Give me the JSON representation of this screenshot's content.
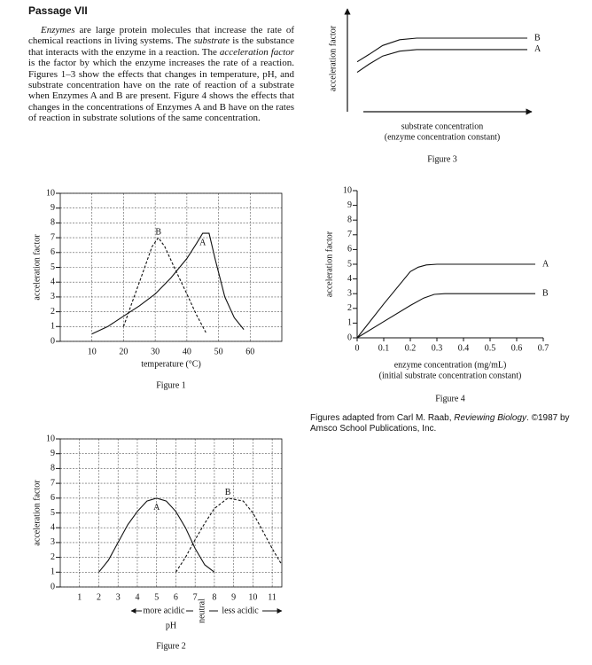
{
  "passage": {
    "title": "Passage VII",
    "runs": [
      {
        "text": "Enzymes",
        "style": "italic"
      },
      {
        "text": " are large protein molecules that increase the rate of chemical reactions in living systems. The ",
        "style": "normal"
      },
      {
        "text": "substrate",
        "style": "italic"
      },
      {
        "text": " is the substance that interacts with the enzyme in a reaction. The ",
        "style": "normal"
      },
      {
        "text": "acceleration factor",
        "style": "italic"
      },
      {
        "text": " is the factor by which the enzyme increases the rate of a reaction. Figures 1–3 show the effects that changes in temperature, pH, and substrate concentration have on the rate of reaction of a substrate when Enzymes A and B are present. Figure 4 shows the effects that changes in the concentrations of Enzymes A and B have on the rates of reaction in substrate solutions of the same concentration.",
        "style": "normal"
      }
    ]
  },
  "chart_data": [
    {
      "type": "line",
      "caption": "Figure 1",
      "xlabel": "temperature (°C)",
      "ylabel": "acceleration factor",
      "grid": true,
      "label_position": "peak",
      "xlim": [
        0,
        70
      ],
      "xticks": [
        10,
        20,
        30,
        40,
        50,
        60
      ],
      "ylim": [
        0,
        10
      ],
      "yticks": [
        0,
        1,
        2,
        3,
        4,
        5,
        6,
        7,
        8,
        9,
        10
      ],
      "series": [
        {
          "name": "A",
          "color": "#111",
          "style": "solid",
          "x": [
            10,
            15,
            20,
            25,
            30,
            35,
            40,
            43,
            45,
            47,
            49,
            52,
            55,
            58
          ],
          "values": [
            0.5,
            1.0,
            1.7,
            2.4,
            3.2,
            4.3,
            5.6,
            6.6,
            7.3,
            7.3,
            5.5,
            3.0,
            1.6,
            0.8
          ]
        },
        {
          "name": "B",
          "color": "#111",
          "style": "dashed",
          "x": [
            20,
            23,
            26,
            29,
            31,
            33,
            36,
            40,
            43,
            46
          ],
          "values": [
            1.0,
            2.8,
            4.6,
            6.4,
            7.0,
            6.4,
            5.0,
            3.2,
            1.8,
            0.6
          ]
        }
      ]
    },
    {
      "type": "line",
      "caption": "Figure 2",
      "xlabel": "pH",
      "ylabel": "acceleration factor",
      "grid": true,
      "label_position": "peak",
      "annotations": [
        "more acidic",
        "neutral",
        "less acidic"
      ],
      "xlim": [
        0,
        11.5
      ],
      "xticks": [
        1,
        2,
        3,
        4,
        5,
        6,
        7,
        8,
        9,
        10,
        11
      ],
      "ylim": [
        0,
        10
      ],
      "yticks": [
        0,
        1,
        2,
        3,
        4,
        5,
        6,
        7,
        8,
        9,
        10
      ],
      "series": [
        {
          "name": "A",
          "color": "#111",
          "style": "solid",
          "x": [
            2,
            2.5,
            3,
            3.5,
            4,
            4.5,
            5,
            5.5,
            6,
            6.5,
            7,
            7.5,
            8
          ],
          "values": [
            1.0,
            1.8,
            3.0,
            4.2,
            5.1,
            5.8,
            6.0,
            5.8,
            5.1,
            4.0,
            2.6,
            1.5,
            1.0
          ]
        },
        {
          "name": "B",
          "color": "#111",
          "style": "dashed",
          "x": [
            6,
            6.5,
            7,
            7.5,
            8,
            8.7,
            9.5,
            10,
            10.5,
            11,
            11.5
          ],
          "values": [
            1.0,
            2.0,
            3.2,
            4.3,
            5.3,
            6.0,
            5.8,
            5.0,
            3.8,
            2.6,
            1.5
          ]
        }
      ]
    },
    {
      "type": "line",
      "caption": "Figure 3",
      "xlabel": "substrate concentration",
      "xlabel_note": "(enzyme concentration constant)",
      "ylabel": "acceleration factor",
      "grid": false,
      "label_position": "end",
      "xlim": [
        0,
        10
      ],
      "ylim": [
        0,
        10
      ],
      "series": [
        {
          "name": "B",
          "color": "#111",
          "style": "solid",
          "x": [
            0,
            0.7,
            1.5,
            2.5,
            3.5,
            10
          ],
          "values": [
            4.6,
            5.5,
            6.6,
            7.3,
            7.5,
            7.5
          ]
        },
        {
          "name": "A",
          "color": "#111",
          "style": "solid",
          "x": [
            0,
            0.7,
            1.5,
            2.5,
            3.5,
            10
          ],
          "values": [
            3.3,
            4.3,
            5.3,
            5.9,
            6.1,
            6.1
          ]
        }
      ]
    },
    {
      "type": "line",
      "caption": "Figure 4",
      "xlabel": "enzyme concentration (mg/mL)",
      "xlabel_note": "(initial substrate concentration constant)",
      "ylabel": "acceleration factor",
      "grid": false,
      "label_position": "end",
      "xlim": [
        0,
        0.7
      ],
      "xticks": [
        0,
        0.1,
        0.2,
        0.3,
        0.4,
        0.5,
        0.6,
        0.7
      ],
      "ylim": [
        0,
        10
      ],
      "yticks": [
        0,
        1,
        2,
        3,
        4,
        5,
        6,
        7,
        8,
        9,
        10
      ],
      "series": [
        {
          "name": "A",
          "color": "#111",
          "style": "solid",
          "x": [
            0,
            0.1,
            0.2,
            0.23,
            0.26,
            0.3,
            0.67
          ],
          "values": [
            0,
            2.3,
            4.5,
            4.8,
            4.95,
            5,
            5
          ]
        },
        {
          "name": "B",
          "color": "#111",
          "style": "solid",
          "x": [
            0,
            0.1,
            0.2,
            0.25,
            0.29,
            0.33,
            0.67
          ],
          "values": [
            0,
            1.1,
            2.2,
            2.7,
            2.95,
            3,
            3
          ]
        }
      ]
    }
  ],
  "credit": {
    "runs": [
      {
        "text": "Figures adapted from Carl M. Raab, ",
        "style": "normal"
      },
      {
        "text": "Reviewing Biology",
        "style": "italic"
      },
      {
        "text": ". ©1987 by Amsco School Publications, Inc.",
        "style": "normal"
      }
    ]
  }
}
